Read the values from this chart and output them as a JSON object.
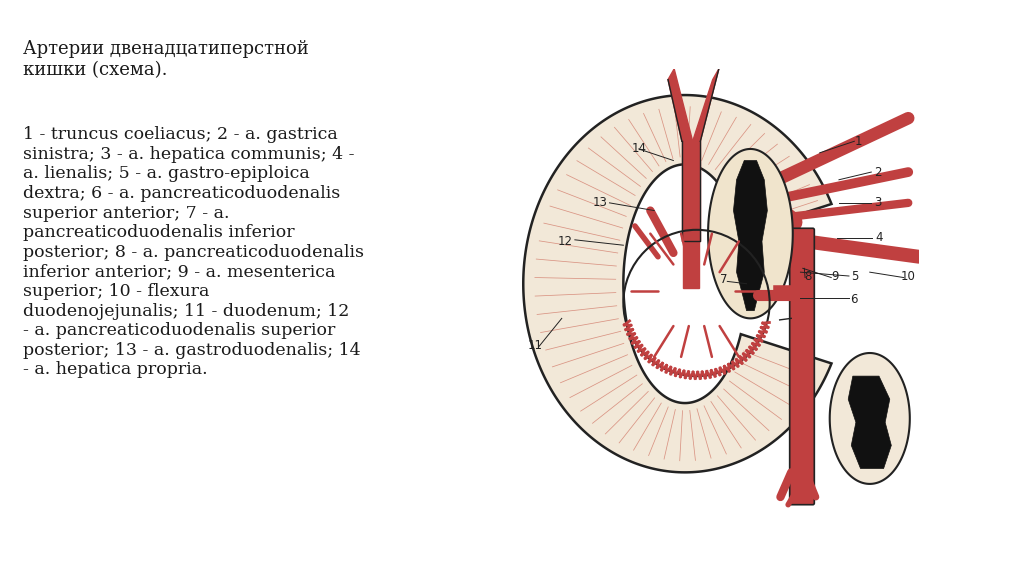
{
  "background_color": "#ffffff",
  "title_text": "Артерии двенадцатиперстной\nкишки (схема).",
  "body_text": "1 - truncus coeliacus; 2 - a. gastrica\nsinistra; 3 - a. hepatica communis; 4 -\na. lienalis; 5 - a. gastro-epiploica\ndextra; 6 - a. pancreaticoduodenalis\nsuperior anterior; 7 - a.\npancreaticoduodenalis inferior\nposterior; 8 - a. pancreaticoduodenalis\ninferior anterior; 9 - a. mesenterica\nsuperior; 10 - flexura\nduodenojejunalis; 11 - duodenum; 12\n- a. pancreaticoduodenalis superior\nposterior; 13 - a. gastroduodenalis; 14\n- a. hepatica propria.",
  "title_fontsize": 13.0,
  "body_fontsize": 12.5,
  "text_color": "#1a1a1a",
  "skin_color": "#f2e8d8",
  "vessel_color": "#c04040",
  "vessel_light": "#d06060",
  "outline_color": "#222222",
  "dark_fill": "#111111",
  "fig_width": 10.24,
  "fig_height": 5.74
}
